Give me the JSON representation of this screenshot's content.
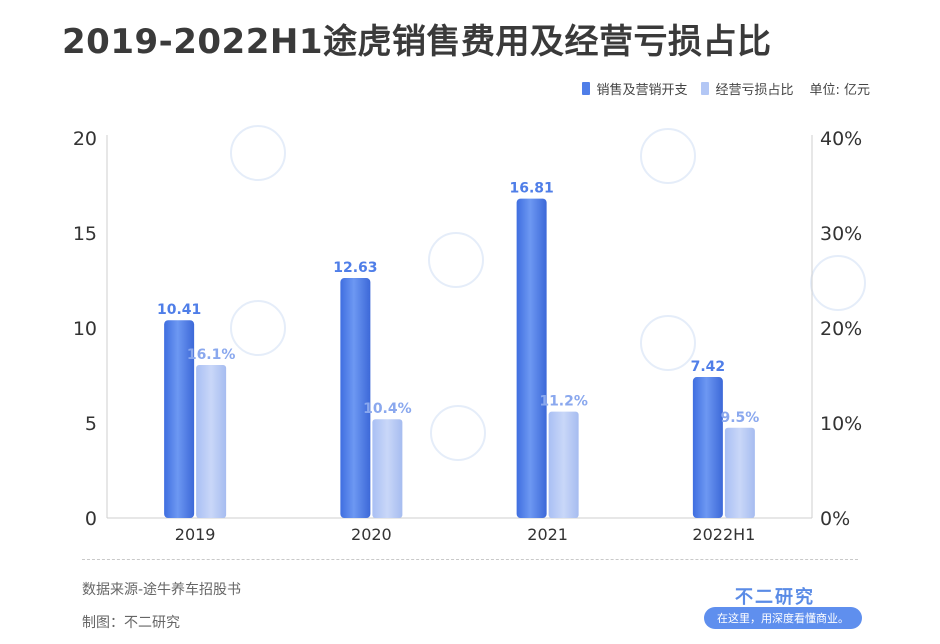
{
  "title": "2019-2022H1途虎销售费用及经营亏损占比",
  "legend": {
    "items": [
      {
        "label": "销售及营销开支",
        "color": "#4f7ee8"
      },
      {
        "label": "经营亏损占比",
        "color": "#b3c7f5"
      }
    ],
    "unit": "单位: 亿元"
  },
  "footer": {
    "source": "数据来源-途牛养车招股书",
    "made_by": "制图：不二研究",
    "brand": "不二研究",
    "slogan": "在这里，用深度看懂商业。"
  },
  "chart_data": {
    "type": "bar",
    "categories": [
      "2019",
      "2020",
      "2021",
      "2022H1"
    ],
    "series": [
      {
        "name": "销售及营销开支",
        "axis": "left",
        "values": [
          10.41,
          12.63,
          16.81,
          7.42
        ],
        "labels": [
          "10.41",
          "12.63",
          "16.81",
          "7.42"
        ],
        "color": "#4f7ee8"
      },
      {
        "name": "经营亏损占比",
        "axis": "right",
        "values": [
          16.1,
          10.4,
          11.2,
          9.5
        ],
        "labels": [
          "16.1%",
          "10.4%",
          "11.2%",
          "9.5%"
        ],
        "color": "#b3c7f5"
      }
    ],
    "ylim_left": [
      0,
      20
    ],
    "yticks_left": [
      "0",
      "5",
      "10",
      "15",
      "20"
    ],
    "ylim_right": [
      0,
      40
    ],
    "yticks_right": [
      "0%",
      "10%",
      "20%",
      "30%",
      "40%"
    ],
    "grid": false,
    "legend_position": "top-right"
  }
}
